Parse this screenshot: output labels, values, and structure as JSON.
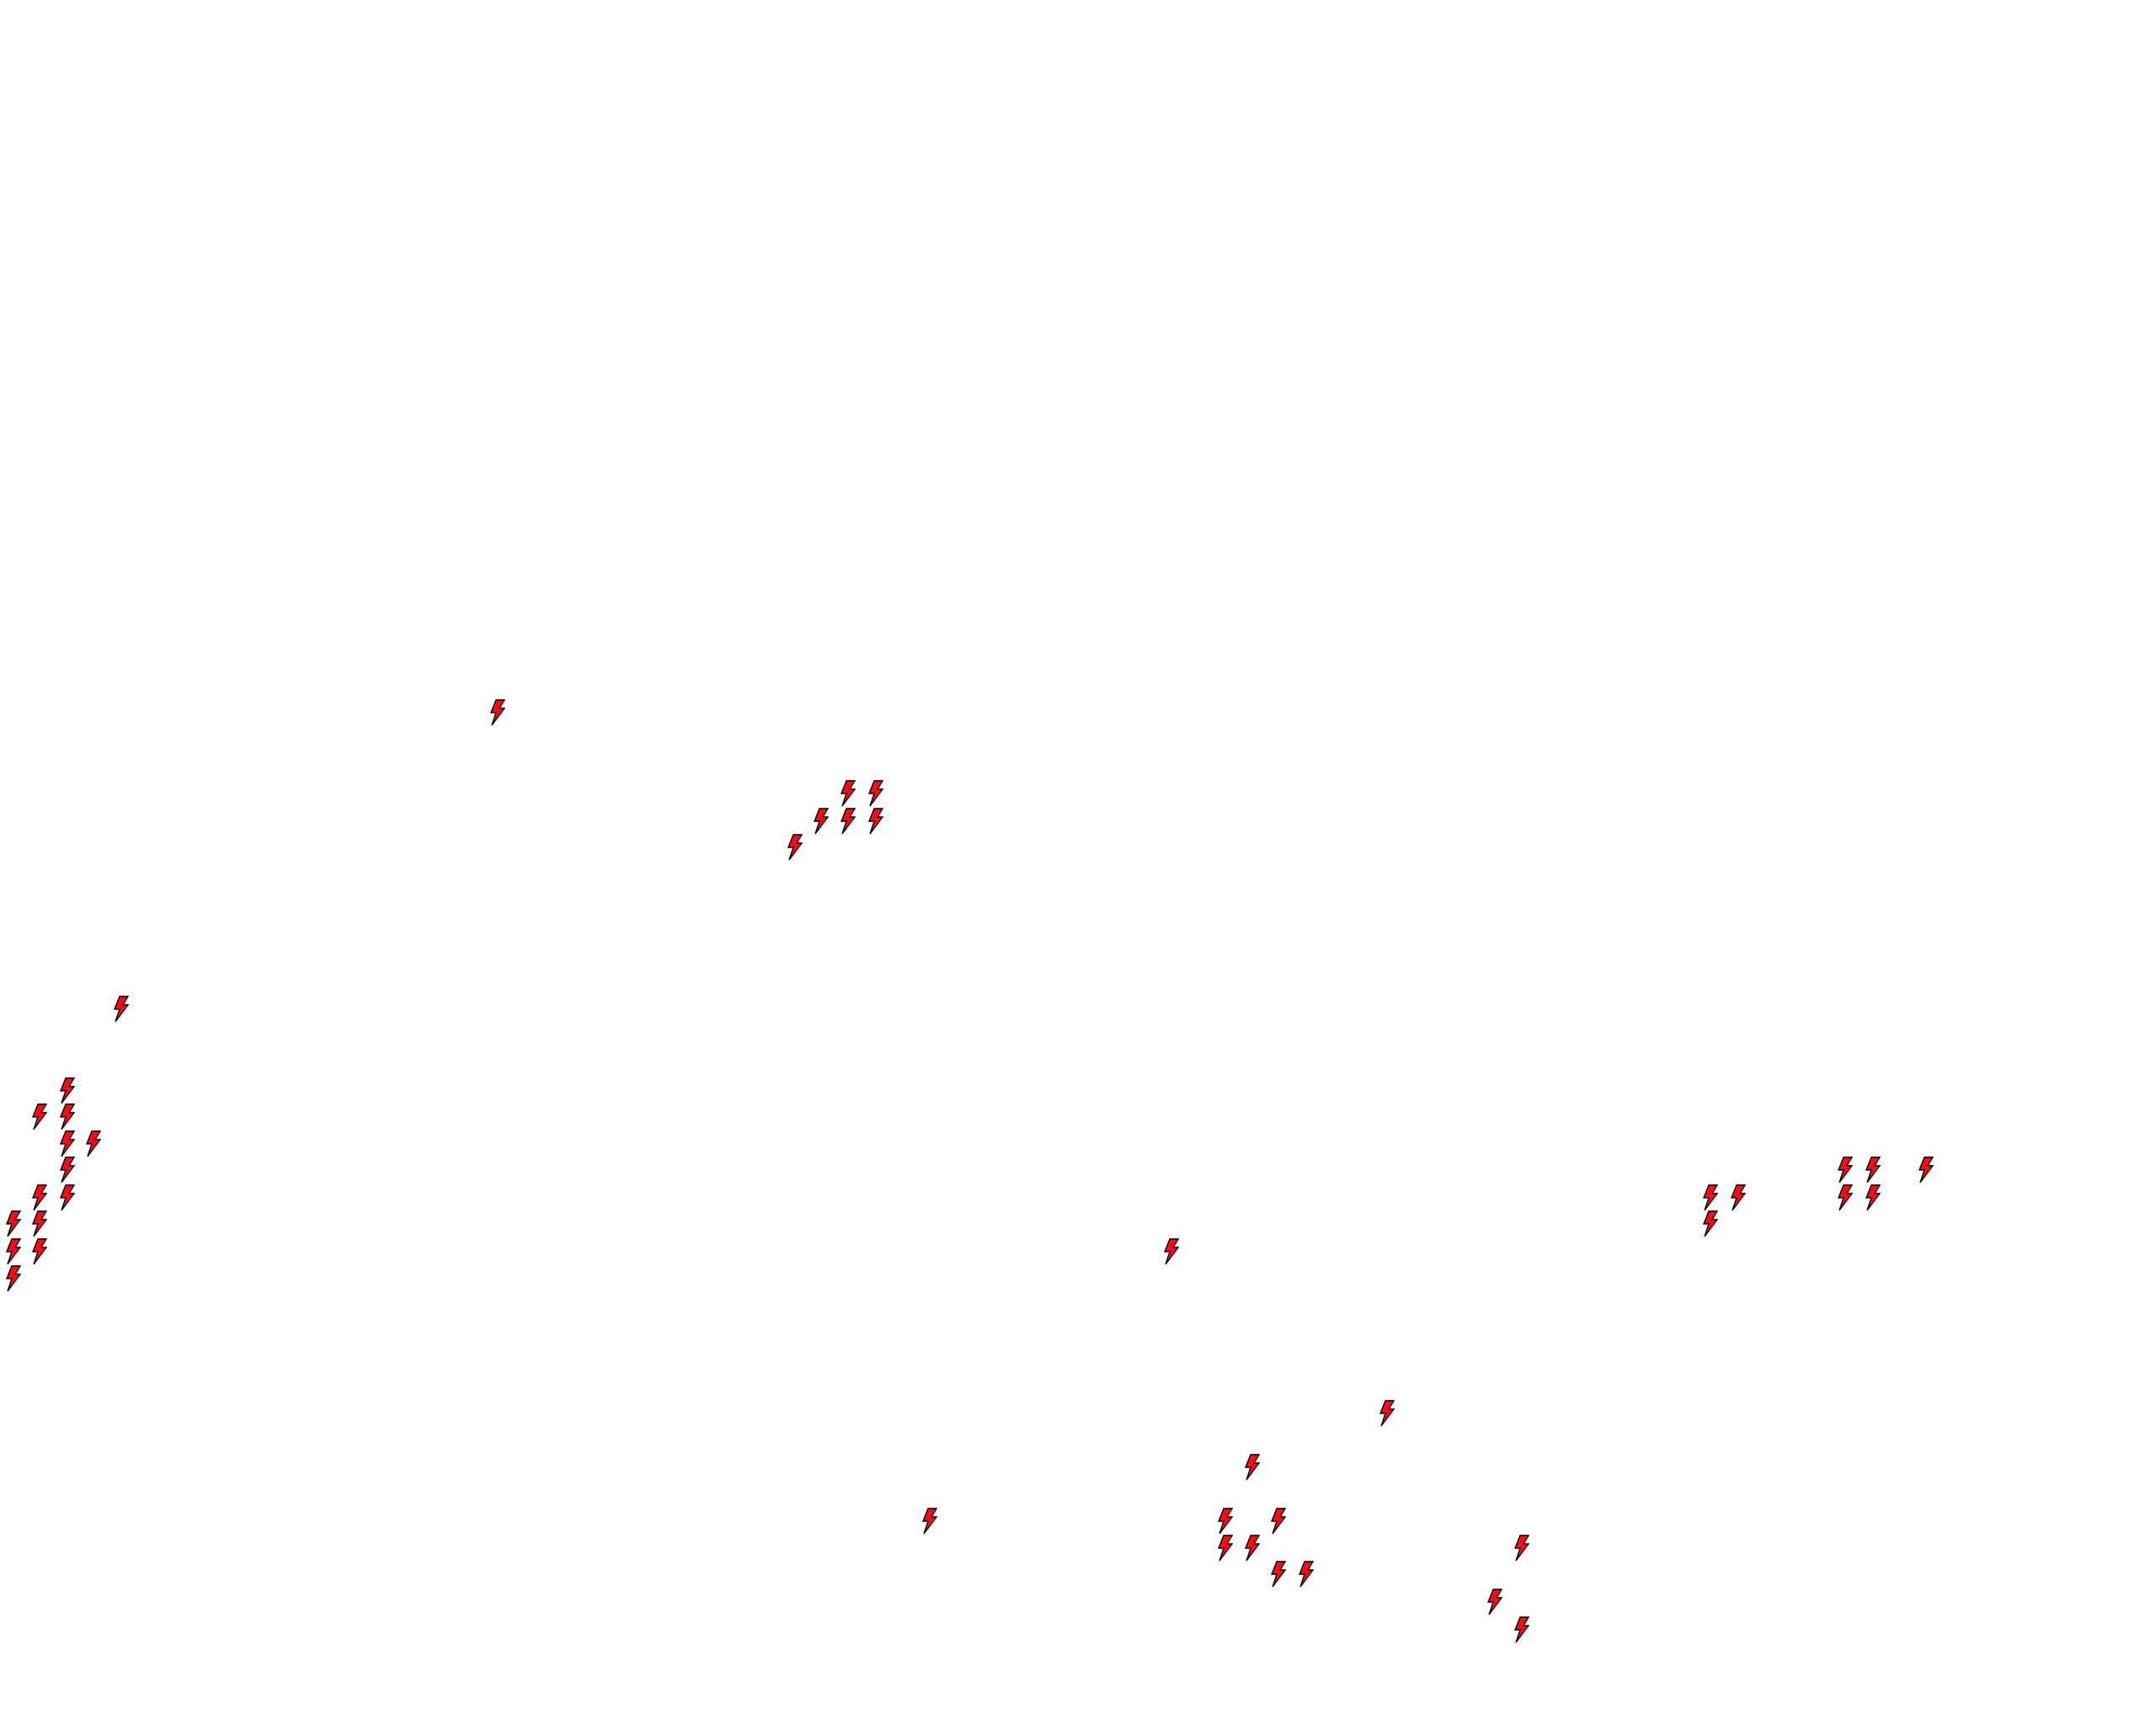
{
  "map": {
    "background": "#ffffff",
    "marker_icon": "lightning-bolt-icon",
    "marker_fill": "#ff0a14",
    "marker_stroke": "#000000",
    "marker_count": 42
  }
}
